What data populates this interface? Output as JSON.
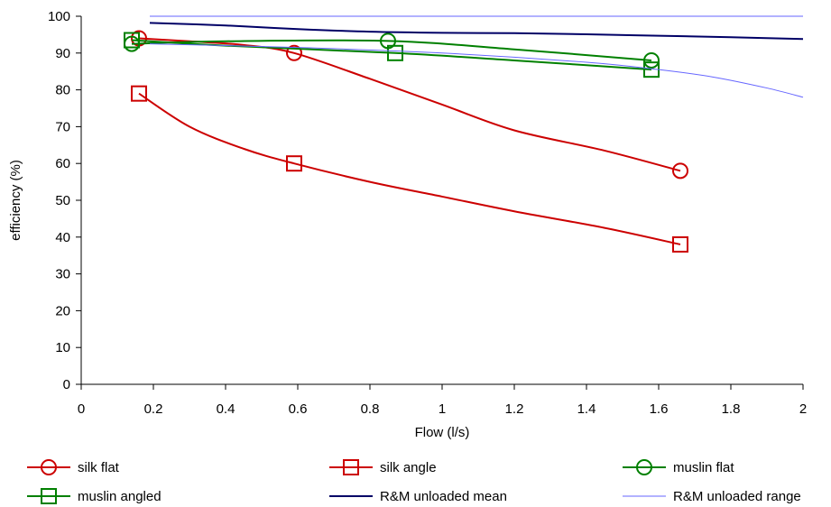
{
  "chart_data": {
    "type": "line",
    "title": "",
    "xlabel": "Flow (l/s)",
    "ylabel": "efficiency (%)",
    "xlim": [
      0,
      2
    ],
    "ylim": [
      0,
      100
    ],
    "x_ticks": [
      "0",
      "0.2",
      "0.4",
      "0.6",
      "0.8",
      "1",
      "1.2",
      "1.4",
      "1.6",
      "1.8",
      "2"
    ],
    "y_ticks": [
      "0",
      "10",
      "20",
      "30",
      "40",
      "50",
      "60",
      "70",
      "80",
      "90",
      "100"
    ],
    "grid": false,
    "legend_position": "bottom",
    "series": [
      {
        "name": "silk flat",
        "color": "#cc0000",
        "marker": "circle",
        "points": [
          [
            0.16,
            94
          ],
          [
            0.59,
            90
          ],
          [
            1.66,
            58
          ]
        ],
        "curve": [
          [
            0.16,
            94
          ],
          [
            0.3,
            93.2
          ],
          [
            0.45,
            92.2
          ],
          [
            0.59,
            90
          ],
          [
            0.8,
            83
          ],
          [
            1.0,
            76
          ],
          [
            1.2,
            69
          ],
          [
            1.45,
            63.5
          ],
          [
            1.66,
            58
          ]
        ]
      },
      {
        "name": "silk angle",
        "color": "#cc0000",
        "marker": "square",
        "points": [
          [
            0.16,
            79
          ],
          [
            0.59,
            60
          ],
          [
            1.66,
            38
          ]
        ],
        "curve": [
          [
            0.16,
            79
          ],
          [
            0.3,
            70
          ],
          [
            0.45,
            64
          ],
          [
            0.59,
            60
          ],
          [
            0.8,
            55
          ],
          [
            1.0,
            51
          ],
          [
            1.2,
            47
          ],
          [
            1.45,
            42.5
          ],
          [
            1.66,
            38
          ]
        ]
      },
      {
        "name": "muslin flat",
        "color": "#008000",
        "marker": "circle",
        "points": [
          [
            0.14,
            92.5
          ],
          [
            0.85,
            93.3
          ],
          [
            1.58,
            88
          ]
        ],
        "curve": [
          [
            0.14,
            92.5
          ],
          [
            0.4,
            93.2
          ],
          [
            0.85,
            93.3
          ],
          [
            1.2,
            91
          ],
          [
            1.58,
            88
          ]
        ]
      },
      {
        "name": "muslin angled",
        "color": "#008000",
        "marker": "square",
        "points": [
          [
            0.14,
            93.5
          ],
          [
            0.87,
            90
          ],
          [
            1.58,
            85.5
          ]
        ],
        "curve": [
          [
            0.14,
            93.5
          ],
          [
            0.4,
            92
          ],
          [
            0.87,
            90
          ],
          [
            1.2,
            88
          ],
          [
            1.58,
            85.5
          ]
        ]
      },
      {
        "name": "R&M unloaded mean",
        "color": "#000066",
        "marker": "none",
        "points": [],
        "curve": [
          [
            0.19,
            98.2
          ],
          [
            0.4,
            97.5
          ],
          [
            0.6,
            96.5
          ],
          [
            0.8,
            95.8
          ],
          [
            1.0,
            95.5
          ],
          [
            1.2,
            95.4
          ],
          [
            1.4,
            95.1
          ],
          [
            1.6,
            94.7
          ],
          [
            1.8,
            94.3
          ],
          [
            2.0,
            93.8
          ]
        ]
      },
      {
        "name": "R&M unloaded range",
        "color": "#6666ff",
        "marker": "none",
        "points": [],
        "curve": [
          [
            0.19,
            100
          ],
          [
            2.0,
            100
          ]
        ],
        "curve2": [
          [
            0.19,
            92.5
          ],
          [
            0.6,
            91.5
          ],
          [
            1.0,
            90
          ],
          [
            1.4,
            87.5
          ],
          [
            1.6,
            85.5
          ],
          [
            1.75,
            83.5
          ],
          [
            1.9,
            80.5
          ],
          [
            2.0,
            78
          ]
        ]
      }
    ]
  }
}
